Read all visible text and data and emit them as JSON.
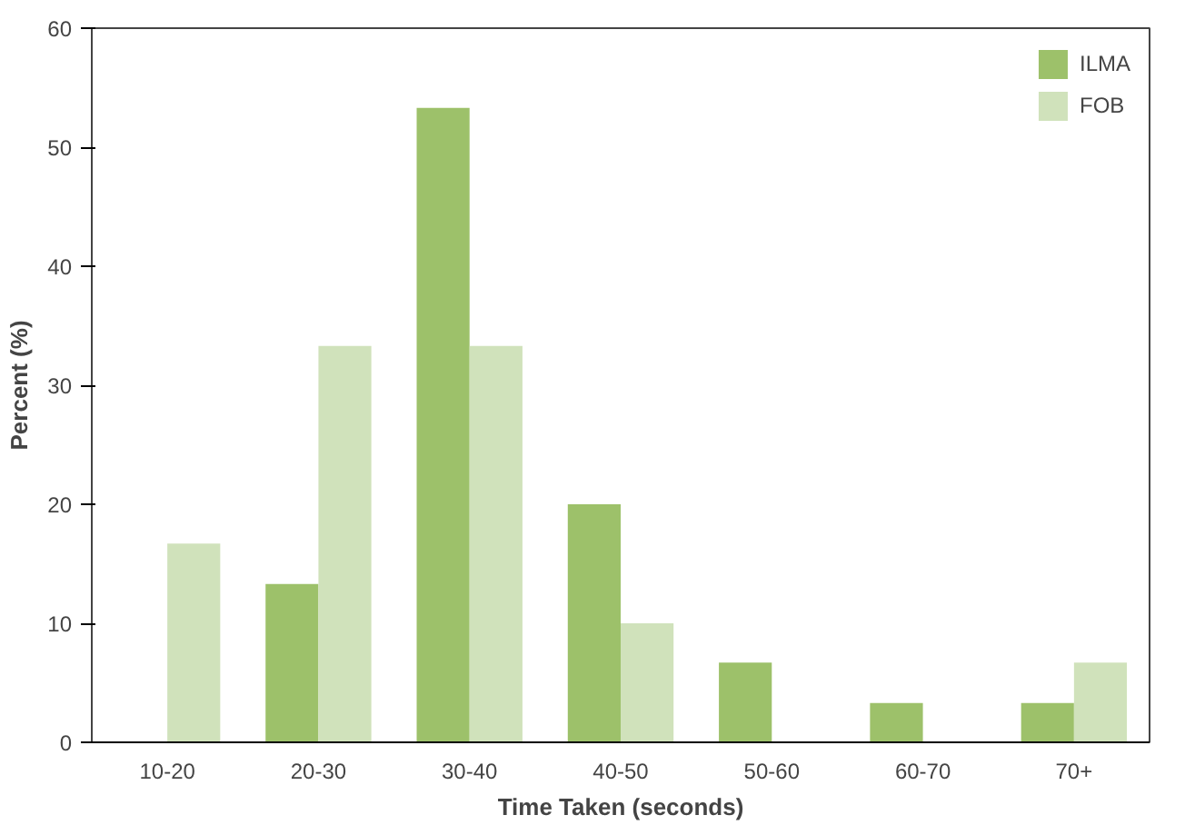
{
  "chart_data": {
    "type": "bar",
    "xlabel": "Time Taken (seconds)",
    "ylabel": "Percent (%)",
    "categories": [
      "10-20",
      "20-30",
      "30-40",
      "40-50",
      "50-60",
      "60-70",
      "70+"
    ],
    "series": [
      {
        "name": "ILMA",
        "color": "#9dc16a",
        "values": [
          0,
          13.3,
          53.3,
          20,
          6.7,
          3.3,
          3.3
        ]
      },
      {
        "name": "FOB",
        "color": "#d0e2bb",
        "values": [
          16.7,
          33.3,
          33.3,
          10,
          0,
          0,
          6.7
        ]
      }
    ],
    "ylim": [
      0,
      60
    ],
    "yticks": [
      0,
      10,
      20,
      30,
      40,
      50,
      60
    ],
    "grid": false,
    "legend": "top right"
  }
}
